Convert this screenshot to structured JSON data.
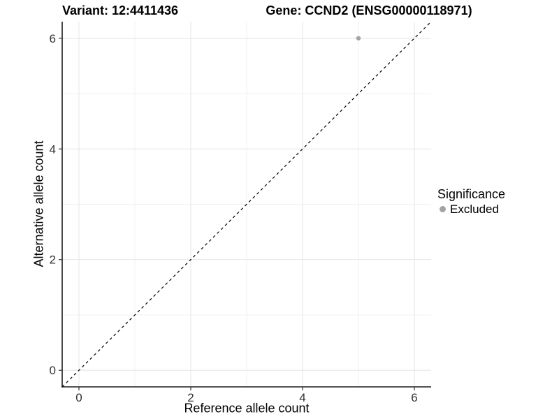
{
  "chart_data": {
    "type": "scatter",
    "titles": [
      "Variant: 12:4411436",
      "Gene: CCND2 (ENSG00000118971)"
    ],
    "xlabel": "Reference allele count",
    "ylabel": "Alternative allele count",
    "xlim": [
      -0.3,
      6.3
    ],
    "ylim": [
      -0.3,
      6.3
    ],
    "x_ticks": [
      0,
      2,
      4,
      6
    ],
    "y_ticks": [
      0,
      2,
      4,
      6
    ],
    "x_minor_ticks": [
      1,
      3,
      5
    ],
    "y_minor_ticks": [
      1,
      3,
      5
    ],
    "grid": "major and minor gridlines on white panel",
    "points": [
      {
        "x": 5,
        "y": 6,
        "series": "Excluded"
      }
    ],
    "reference_line": {
      "equation": "y = x",
      "style": "dashed",
      "color": "#000000"
    },
    "legend": {
      "title": "Significance",
      "position": "right",
      "items": [
        {
          "label": "Excluded",
          "color": "#a3a3a3"
        }
      ]
    },
    "point_color": "#a3a3a3",
    "point_radius": 3.2,
    "colors": {
      "background": "#ffffff",
      "grid_major": "#e6e6e6",
      "grid_minor": "#efefef",
      "axis_line": "#1a1a1a",
      "tick_mark": "#333333",
      "tick_label": "#333333",
      "text": "#000000"
    }
  }
}
